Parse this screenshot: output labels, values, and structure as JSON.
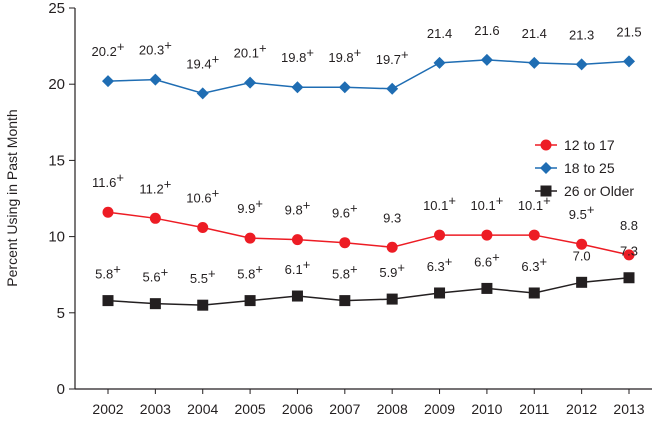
{
  "chart_data": {
    "type": "line",
    "title": "",
    "xlabel": "",
    "ylabel": "Percent Using in Past Month",
    "ylim": [
      0,
      25
    ],
    "yticks": [
      0,
      5,
      10,
      15,
      20,
      25
    ],
    "categories": [
      "2002",
      "2003",
      "2004",
      "2005",
      "2006",
      "2007",
      "2008",
      "2009",
      "2010",
      "2011",
      "2012",
      "2013"
    ],
    "grid": false,
    "legend_position": "right-middle",
    "significance_marker": "+",
    "series": [
      {
        "name": "12 to 17",
        "color": "#ed1c24",
        "marker": "circle",
        "values": [
          11.6,
          11.2,
          10.6,
          9.9,
          9.8,
          9.6,
          9.3,
          10.1,
          10.1,
          10.1,
          9.5,
          8.8
        ],
        "labels": [
          "11.6",
          "11.2",
          "10.6",
          "9.9",
          "9.8",
          "9.6",
          "9.3",
          "10.1",
          "10.1",
          "10.1",
          "9.5",
          "8.8"
        ],
        "significant": [
          true,
          true,
          true,
          true,
          true,
          true,
          false,
          true,
          true,
          true,
          true,
          false
        ]
      },
      {
        "name": "18 to 25",
        "color": "#1f6db3",
        "marker": "diamond",
        "values": [
          20.2,
          20.3,
          19.4,
          20.1,
          19.8,
          19.8,
          19.7,
          21.4,
          21.6,
          21.4,
          21.3,
          21.5
        ],
        "labels": [
          "20.2",
          "20.3",
          "19.4",
          "20.1",
          "19.8",
          "19.8",
          "19.7",
          "21.4",
          "21.6",
          "21.4",
          "21.3",
          "21.5"
        ],
        "significant": [
          true,
          true,
          true,
          true,
          true,
          true,
          true,
          false,
          false,
          false,
          false,
          false
        ]
      },
      {
        "name": "26 or Older",
        "color": "#231f20",
        "marker": "square",
        "values": [
          5.8,
          5.6,
          5.5,
          5.8,
          6.1,
          5.8,
          5.9,
          6.3,
          6.6,
          6.3,
          7.0,
          7.3
        ],
        "labels": [
          "5.8",
          "5.6",
          "5.5",
          "5.8",
          "6.1",
          "5.8",
          "5.9",
          "6.3",
          "6.6",
          "6.3",
          "7.0",
          "7.3"
        ],
        "significant": [
          true,
          true,
          true,
          true,
          true,
          true,
          true,
          true,
          true,
          true,
          false,
          false
        ]
      }
    ]
  }
}
